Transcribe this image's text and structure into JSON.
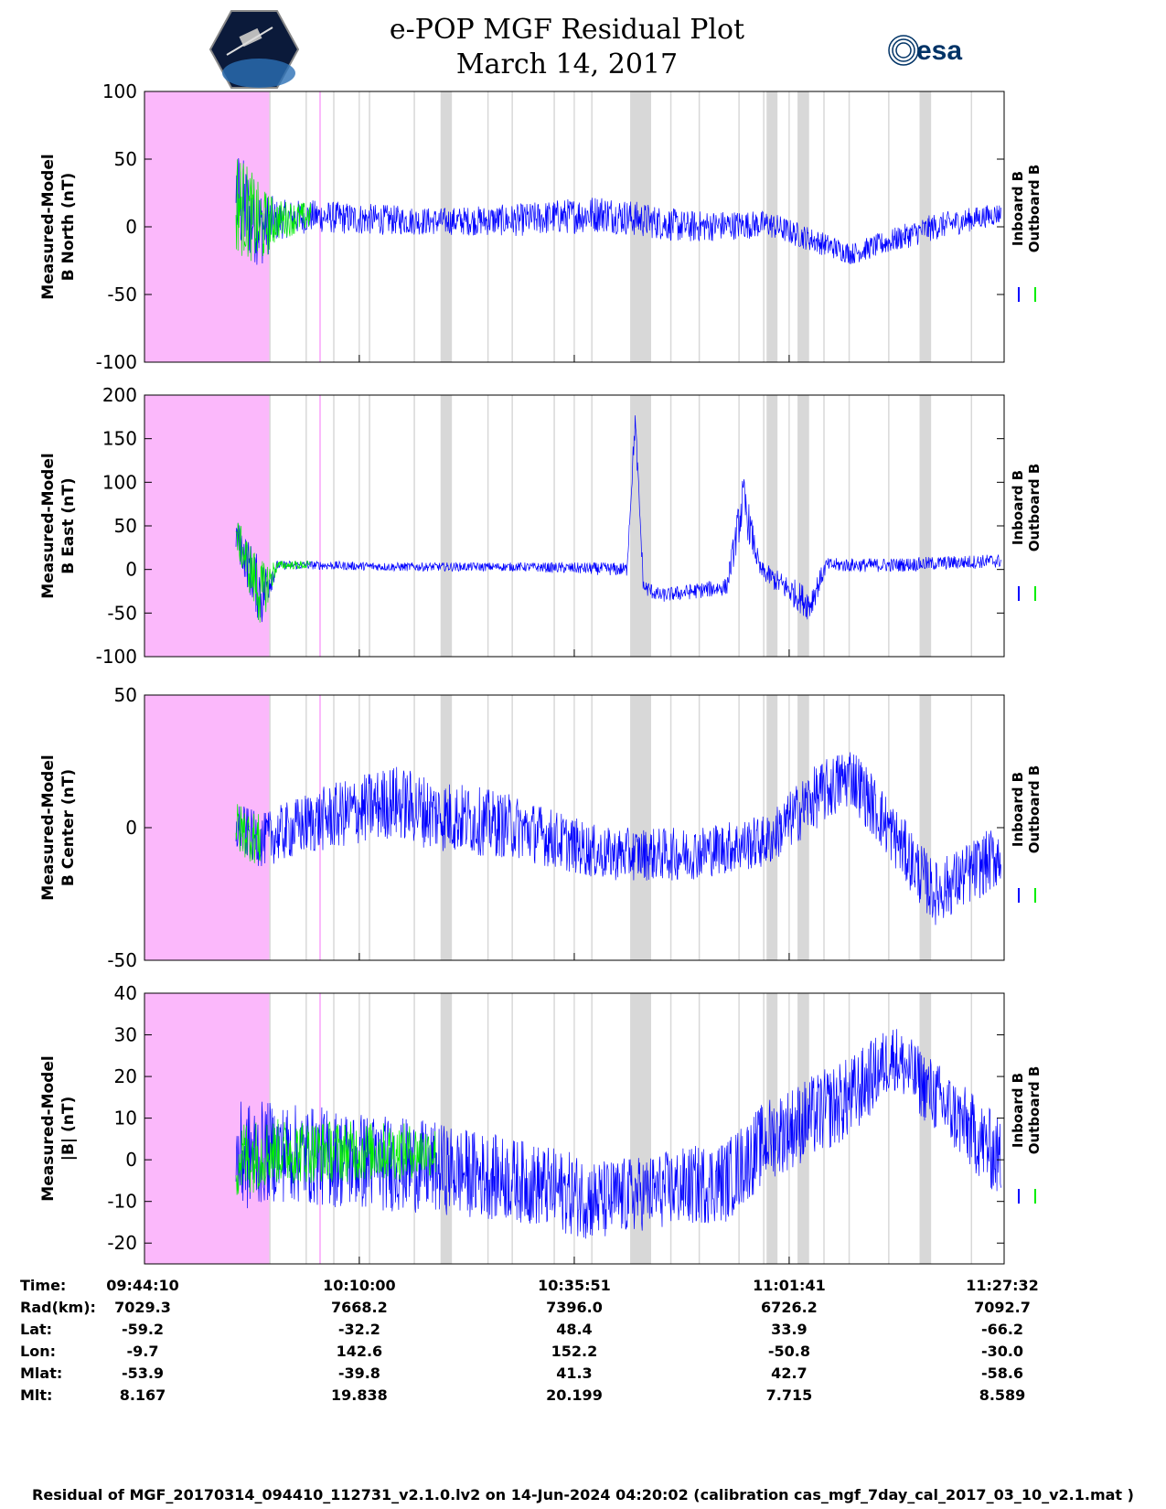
{
  "header": {
    "title": "e-POP MGF Residual Plot",
    "date": "March 14, 2017",
    "logo_left": "cassiope-logo",
    "logo_right_text": "esa"
  },
  "colors": {
    "inboard": "#0000ff",
    "outboard": "#00ee00",
    "pink_band": "#fbb8fb",
    "gray_band": "#d8d8d8",
    "grid": "#c8c8c8"
  },
  "legend": {
    "inboard": "Inboard B",
    "outboard": "Outboard B"
  },
  "chart_data": [
    {
      "type": "line",
      "ylabel_line1": "Measured-Model",
      "ylabel_line2": "B North (nT)",
      "ylim": [
        -100,
        100
      ],
      "yticks": [
        100,
        50,
        0,
        -50,
        -100
      ],
      "series": [
        {
          "name": "Inboard B",
          "envelope_minutes": [
            11,
            14,
            16,
            20,
            25,
            35,
            45,
            55,
            65,
            75,
            85,
            95,
            103
          ],
          "center": [
            20,
            0,
            5,
            8,
            6,
            4,
            5,
            10,
            0,
            2,
            -20,
            0,
            10
          ],
          "amplitude": [
            40,
            30,
            15,
            12,
            12,
            10,
            12,
            14,
            12,
            10,
            8,
            10,
            8
          ]
        },
        {
          "name": "Outboard B",
          "envelope_minutes": [
            11,
            14,
            16,
            20
          ],
          "center": [
            20,
            0,
            5,
            8
          ],
          "amplitude": [
            40,
            30,
            15,
            10
          ]
        }
      ]
    },
    {
      "type": "line",
      "ylabel_line1": "Measured-Model",
      "ylabel_line2": "B East (nT)",
      "ylim": [
        -100,
        200
      ],
      "yticks": [
        200,
        150,
        100,
        50,
        0,
        -50,
        -100
      ],
      "series": [
        {
          "name": "Inboard B",
          "envelope_minutes": [
            11,
            14,
            16,
            20,
            30,
            45,
            58,
            59,
            60,
            62,
            70,
            72,
            74,
            80,
            82,
            90,
            103
          ],
          "center": [
            40,
            -30,
            5,
            5,
            3,
            3,
            0,
            170,
            -20,
            -30,
            -20,
            80,
            0,
            -40,
            5,
            5,
            10
          ],
          "amplitude": [
            20,
            40,
            5,
            5,
            5,
            5,
            8,
            15,
            10,
            8,
            10,
            30,
            10,
            20,
            8,
            8,
            8
          ]
        },
        {
          "name": "Outboard B",
          "envelope_minutes": [
            11,
            14,
            16,
            20
          ],
          "center": [
            40,
            -30,
            5,
            5
          ],
          "amplitude": [
            20,
            40,
            5,
            5
          ]
        }
      ]
    },
    {
      "type": "line",
      "ylabel_line1": "Measured-Model",
      "ylabel_line2": "B Center (nT)",
      "ylim": [
        -50,
        50
      ],
      "yticks": [
        50,
        0,
        -50
      ],
      "series": [
        {
          "name": "Inboard B",
          "envelope_minutes": [
            11,
            14,
            20,
            30,
            35,
            45,
            55,
            65,
            75,
            80,
            85,
            95,
            103
          ],
          "center": [
            0,
            -5,
            2,
            10,
            5,
            0,
            -10,
            -10,
            -5,
            10,
            20,
            -25,
            -10
          ],
          "amplitude": [
            10,
            10,
            12,
            14,
            14,
            12,
            10,
            10,
            10,
            12,
            12,
            12,
            12
          ]
        },
        {
          "name": "Outboard B",
          "envelope_minutes": [
            11,
            14
          ],
          "center": [
            0,
            -5
          ],
          "amplitude": [
            10,
            10
          ]
        }
      ]
    },
    {
      "type": "line",
      "ylabel_line1": "Measured-Model",
      "ylabel_line2": "|B| (nT)",
      "ylim": [
        -25,
        40
      ],
      "yticks": [
        40,
        30,
        20,
        10,
        0,
        -10,
        -20
      ],
      "series": [
        {
          "name": "Inboard B",
          "envelope_minutes": [
            11,
            15,
            25,
            35,
            45,
            55,
            60,
            70,
            75,
            85,
            90,
            103
          ],
          "center": [
            0,
            2,
            0,
            -2,
            -5,
            -10,
            -8,
            -5,
            5,
            15,
            25,
            0
          ],
          "amplitude": [
            14,
            12,
            12,
            11,
            10,
            10,
            9,
            10,
            10,
            10,
            8,
            10
          ]
        },
        {
          "name": "Outboard B",
          "envelope_minutes": [
            11,
            15,
            30,
            35
          ],
          "center": [
            0,
            2,
            2,
            2
          ],
          "amplitude": [
            10,
            8,
            7,
            6
          ]
        }
      ]
    }
  ],
  "time_axis": {
    "xlim_minutes": [
      0,
      103.37
    ],
    "tick_minutes": [
      0,
      25.83,
      51.68,
      77.52,
      103.37
    ]
  },
  "ephemeris": {
    "labels": [
      "Time:",
      "Rad(km):",
      "Lat:",
      "Lon:",
      "Mlat:",
      "Mlt:"
    ],
    "columns": [
      [
        "09:44:10",
        "7029.3",
        "-59.2",
        "-9.7",
        "-53.9",
        "8.167"
      ],
      [
        "10:10:00",
        "7668.2",
        "-32.2",
        "142.6",
        "-39.8",
        "19.838"
      ],
      [
        "10:35:51",
        "7396.0",
        "48.4",
        "152.2",
        "41.3",
        "20.199"
      ],
      [
        "11:01:41",
        "6726.2",
        "33.9",
        "-50.8",
        "42.7",
        "7.715"
      ],
      [
        "11:27:32",
        "7092.7",
        "-66.2",
        "-30.0",
        "-58.6",
        "8.589"
      ]
    ]
  },
  "footer": "Residual of MGF_20170314_094410_112731_v2.1.0.lv2 on 14-Jun-2024 04:20:02 (calibration cas_mgf_7day_cal_2017_03_10_v2.1.mat )"
}
